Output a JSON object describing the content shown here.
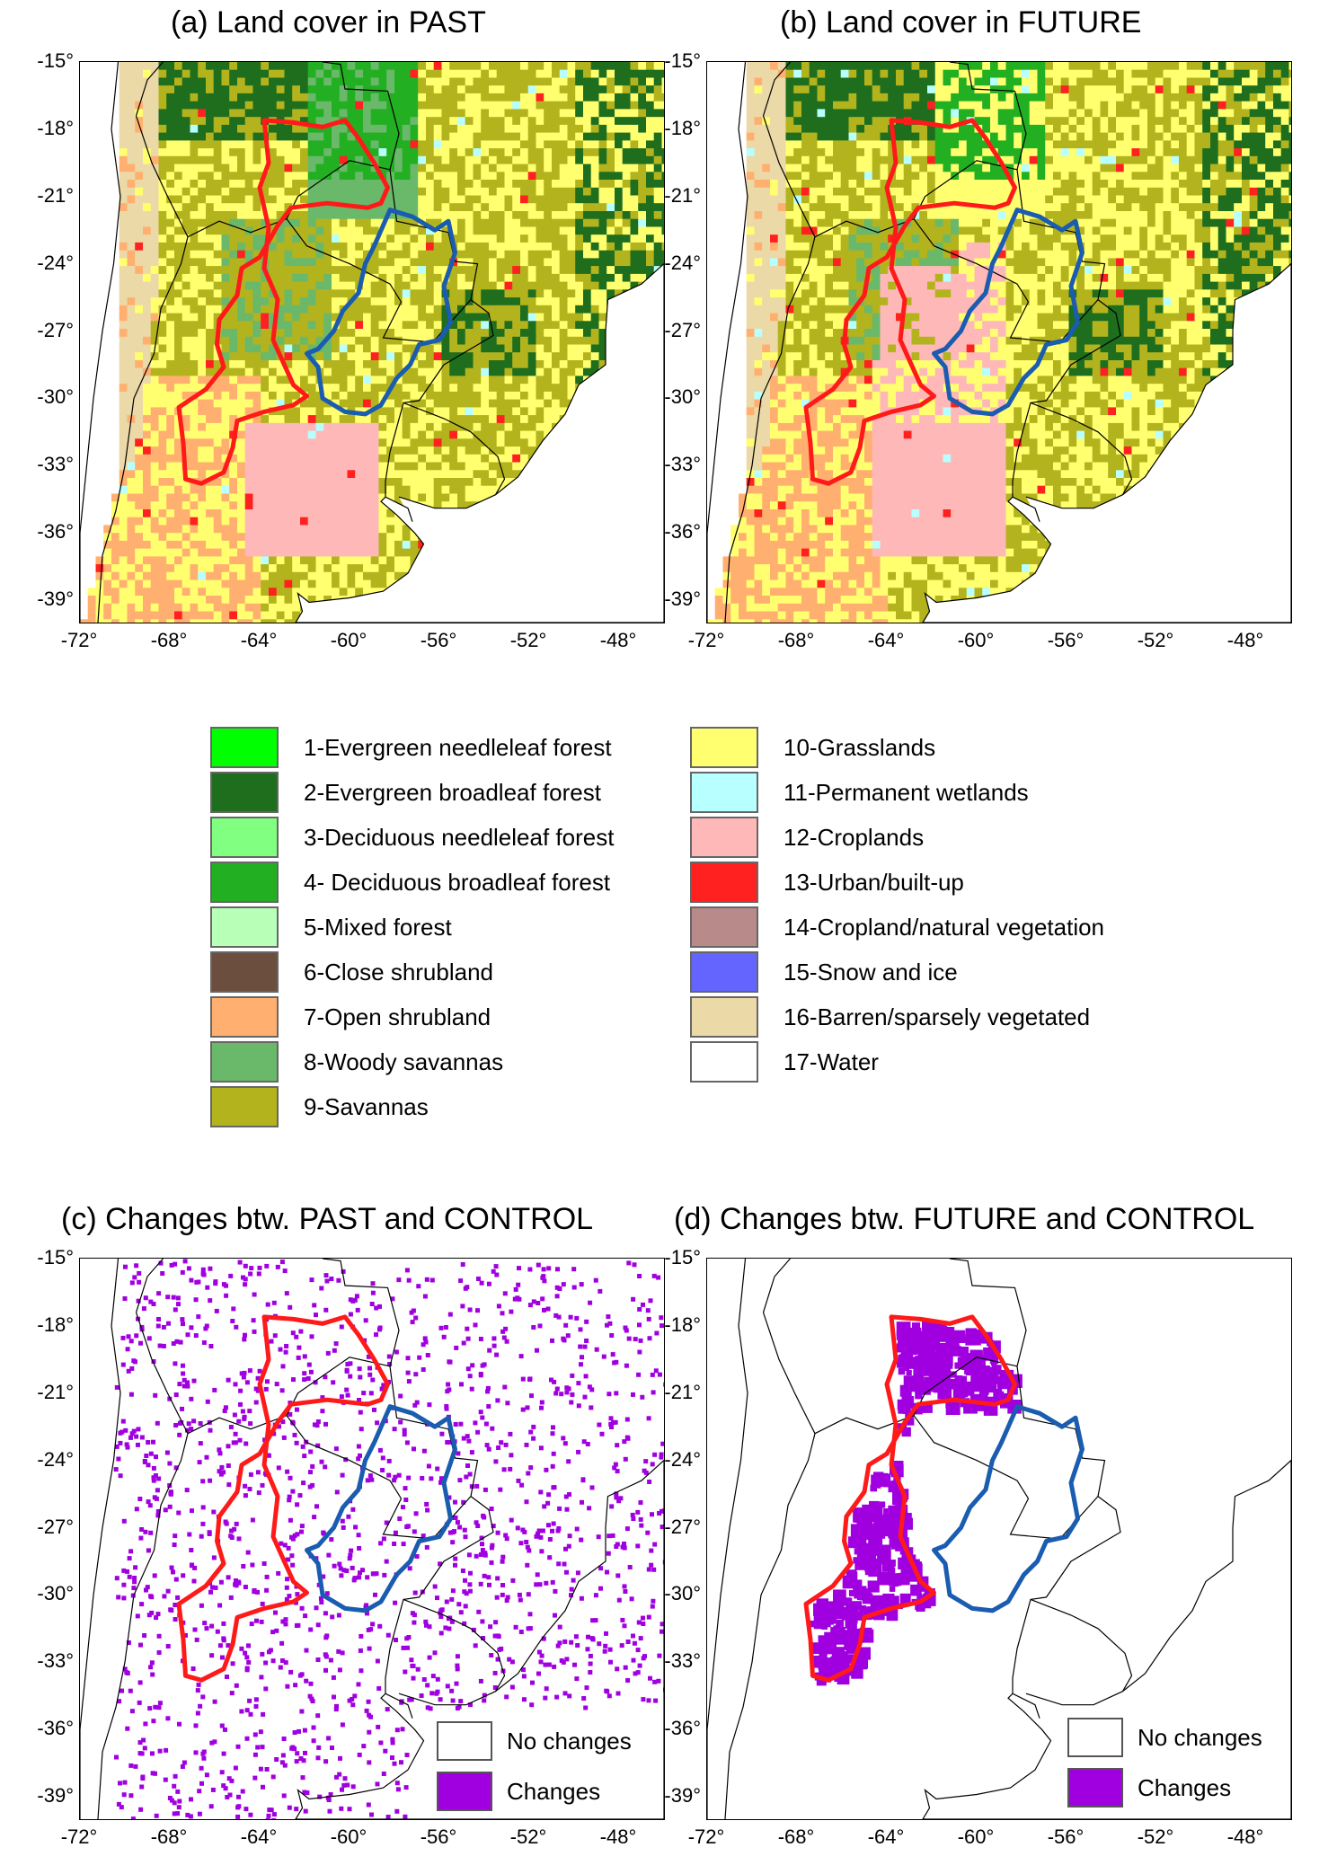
{
  "panels": [
    {
      "id": "a",
      "title": "(a) Land cover in PAST",
      "type": "landcover",
      "variant": "past"
    },
    {
      "id": "b",
      "title": "(b) Land cover in FUTURE",
      "type": "landcover",
      "variant": "future"
    },
    {
      "id": "c",
      "title": "(c) Changes btw. PAST and CONTROL",
      "type": "changes",
      "variant": "scatter"
    },
    {
      "id": "d",
      "title": "(d) Changes btw. FUTURE and CONTROL",
      "type": "changes",
      "variant": "clustered"
    }
  ],
  "axes": {
    "lat_labels": [
      "-15°",
      "-18°",
      "-21°",
      "-24°",
      "-27°",
      "-30°",
      "-33°",
      "-36°",
      "-39°"
    ],
    "lon_labels": [
      "-72°",
      "-68°",
      "-64°",
      "-60°",
      "-56°",
      "-52°",
      "-48°"
    ],
    "lon_range": [
      -72,
      -46
    ],
    "lat_range": [
      -40,
      -15
    ]
  },
  "legend": {
    "left": [
      {
        "label": "1-Evergreen needleleaf forest",
        "color": "#00ff00"
      },
      {
        "label": "2-Evergreen broadleaf forest",
        "color": "#1e6e1e"
      },
      {
        "label": "3-Deciduous needleleaf forest",
        "color": "#80ff80"
      },
      {
        "label": "4- Deciduous broadleaf forest",
        "color": "#22b022"
      },
      {
        "label": "5-Mixed forest",
        "color": "#b8ffb8"
      },
      {
        "label": "6-Close shrubland",
        "color": "#6b4e3d"
      },
      {
        "label": "7-Open shrubland",
        "color": "#ffb070"
      },
      {
        "label": "8-Woody savannas",
        "color": "#6ab86a"
      },
      {
        "label": "9-Savannas",
        "color": "#b3b31e"
      }
    ],
    "right": [
      {
        "label": "10-Grasslands",
        "color": "#ffff70"
      },
      {
        "label": "11-Permanent wetlands",
        "color": "#b8ffff"
      },
      {
        "label": "12-Croplands",
        "color": "#ffb8b8"
      },
      {
        "label": "13-Urban/built-up",
        "color": "#ff2020"
      },
      {
        "label": "14-Cropland/natural vegetation",
        "color": "#b88a8a"
      },
      {
        "label": "15-Snow and ice",
        "color": "#6464ff"
      },
      {
        "label": "16-Barren/sparsely vegetated",
        "color": "#ecd9a8"
      },
      {
        "label": "17-Water",
        "color": "#ffffff"
      }
    ]
  },
  "change_legend": {
    "no_change_label": "No changes",
    "no_change_color": "#ffffff",
    "change_label": "Changes",
    "change_color": "#a000e0"
  },
  "boundary_colors": {
    "red": "#ff1a1a",
    "blue": "#1a5cb0"
  }
}
